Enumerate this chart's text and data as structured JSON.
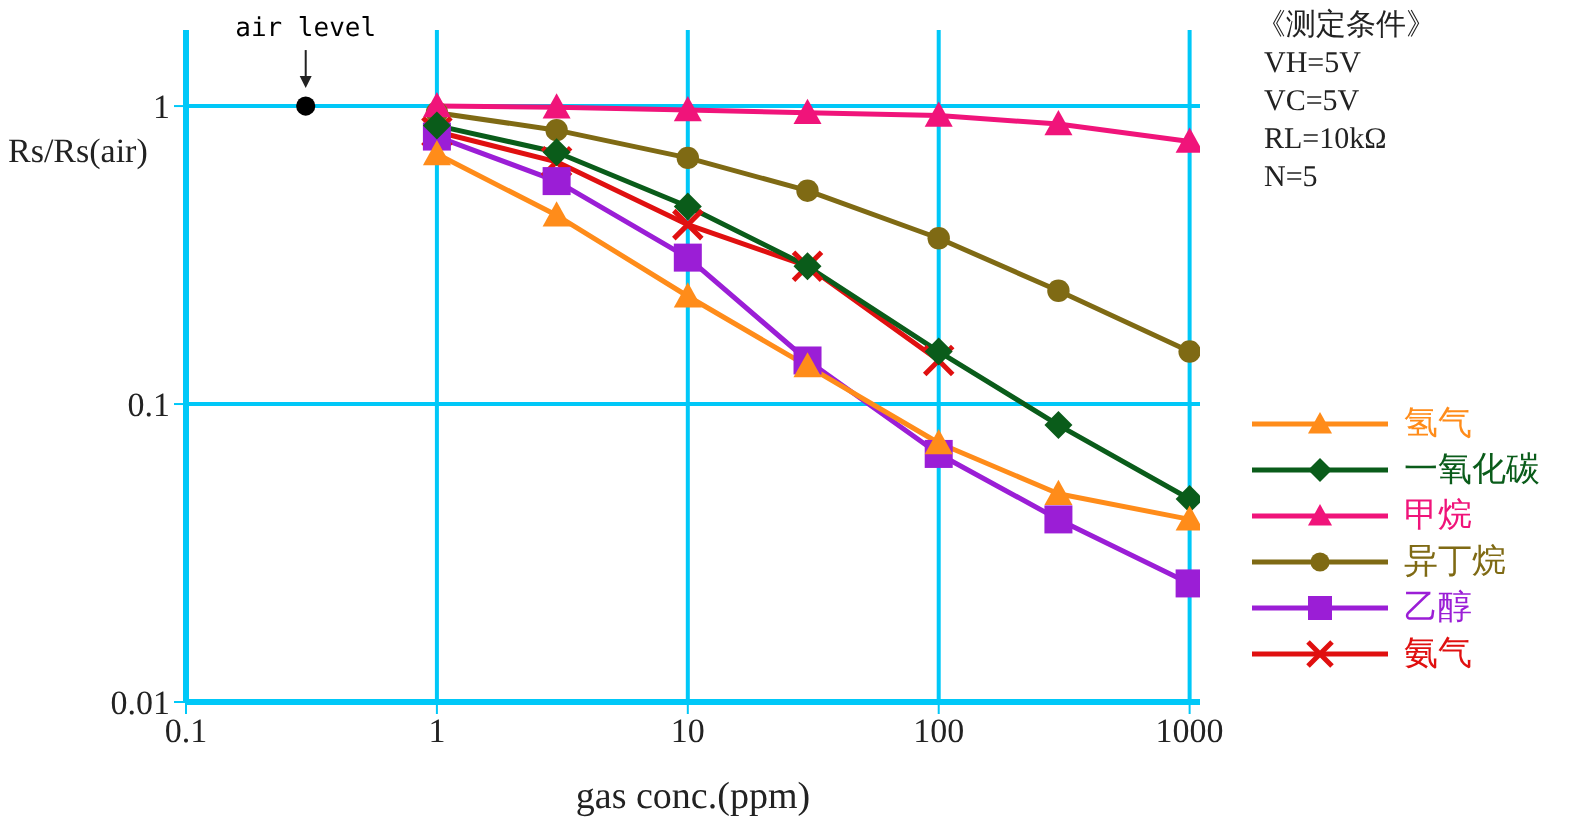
{
  "chart_data": {
    "type": "line",
    "xlabel": "gas conc.(ppm)",
    "ylabel": "Rs/Rs(air)",
    "log": "xy",
    "grid": true,
    "legend": "right",
    "xlim": [
      0.1,
      1100
    ],
    "xticks": [
      0.1,
      1,
      10,
      100,
      1000
    ],
    "ylim": [
      0.01,
      1.8
    ],
    "yticks": [
      0.01,
      0.1,
      1
    ],
    "x": [
      1,
      3,
      10,
      30,
      100,
      300,
      1000
    ],
    "series": [
      {
        "name": "氢气",
        "color": "#ff8c1a",
        "marker": "triangle",
        "values": [
          0.69,
          0.43,
          0.23,
          0.134,
          0.074,
          0.05,
          0.041
        ]
      },
      {
        "name": "一氧化碳",
        "color": "#0a5c1a",
        "marker": "diamond",
        "values": [
          0.86,
          0.7,
          0.46,
          0.29,
          0.15,
          0.085,
          0.048
        ]
      },
      {
        "name": "甲烷",
        "color": "#f0147a",
        "marker": "triangle",
        "values": [
          1.0,
          0.99,
          0.97,
          0.95,
          0.93,
          0.87,
          0.76
        ]
      },
      {
        "name": "异丁烷",
        "color": "#7f6a14",
        "marker": "circle",
        "values": [
          0.95,
          0.83,
          0.67,
          0.52,
          0.36,
          0.24,
          0.15
        ]
      },
      {
        "name": "乙醇",
        "color": "#9b1ed6",
        "marker": "square",
        "values": [
          0.79,
          0.56,
          0.31,
          0.14,
          0.068,
          0.041,
          0.025
        ]
      },
      {
        "name": "氨气",
        "color": "#e01010",
        "marker": "cross",
        "values": [
          0.82,
          0.65,
          0.4,
          0.29,
          0.14,
          null,
          null
        ]
      },
      {
        "type": "scatter",
        "color": "#000000",
        "marker": "circle",
        "x": [
          0.3
        ],
        "values": [
          1
        ]
      }
    ],
    "annotations": [
      {
        "text": "air level",
        "x": 0.3,
        "y": 1
      },
      "《测定条件》",
      "VH=5V",
      "VC=5V",
      "RL=10kΩ",
      "N=5"
    ]
  }
}
